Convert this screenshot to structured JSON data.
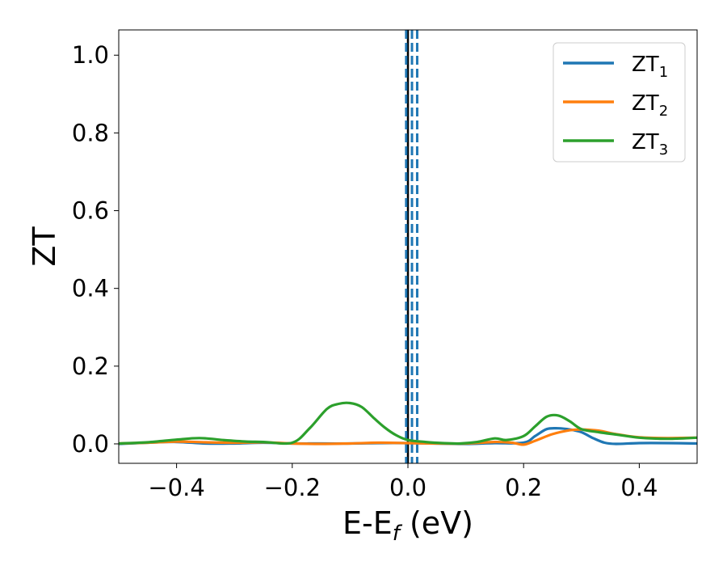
{
  "chart_data": {
    "type": "line",
    "xlabel_main": "E-E",
    "xlabel_sub": "f",
    "xlabel_unit": " (eV)",
    "ylabel": "ZT",
    "xlim": [
      -0.5,
      0.5
    ],
    "ylim": [
      -0.05,
      1.065
    ],
    "xticks": [
      -0.4,
      -0.2,
      0.0,
      0.2,
      0.4
    ],
    "xtick_labels": [
      "−0.4",
      "−0.2",
      "0.0",
      "0.2",
      "0.4"
    ],
    "yticks": [
      0.0,
      0.2,
      0.4,
      0.6,
      0.8,
      1.0
    ],
    "ytick_labels": [
      "0.0",
      "0.2",
      "0.4",
      "0.6",
      "0.8",
      "1.0"
    ],
    "grid": false,
    "legend_position": "top-right",
    "series": [
      {
        "name": "ZT",
        "sub": "1",
        "color": "#1f77b4",
        "x": [
          -0.5,
          -0.45,
          -0.4,
          -0.35,
          -0.3,
          -0.25,
          -0.2,
          -0.15,
          -0.1,
          -0.05,
          0.0,
          0.05,
          0.1,
          0.15,
          0.2,
          0.22,
          0.24,
          0.26,
          0.28,
          0.3,
          0.32,
          0.34,
          0.36,
          0.4,
          0.45,
          0.5
        ],
        "y": [
          0.0,
          0.003,
          0.005,
          0.001,
          0.001,
          0.003,
          0.001,
          0.001,
          0.001,
          0.002,
          0.002,
          0.001,
          0.0,
          0.002,
          0.003,
          0.02,
          0.038,
          0.04,
          0.037,
          0.03,
          0.015,
          0.003,
          0.0,
          0.002,
          0.002,
          0.001
        ]
      },
      {
        "name": "ZT",
        "sub": "2",
        "color": "#ff7f0e",
        "x": [
          -0.5,
          -0.45,
          -0.4,
          -0.35,
          -0.3,
          -0.25,
          -0.2,
          -0.15,
          -0.1,
          -0.05,
          0.0,
          0.05,
          0.1,
          0.15,
          0.18,
          0.2,
          0.22,
          0.25,
          0.28,
          0.3,
          0.33,
          0.36,
          0.4,
          0.45,
          0.5
        ],
        "y": [
          0.001,
          0.003,
          0.006,
          0.004,
          0.003,
          0.004,
          0.001,
          0.0,
          0.001,
          0.003,
          0.002,
          0.001,
          0.001,
          0.005,
          0.003,
          -0.002,
          0.008,
          0.025,
          0.035,
          0.037,
          0.034,
          0.025,
          0.017,
          0.015,
          0.016
        ]
      },
      {
        "name": "ZT",
        "sub": "3",
        "color": "#2ca02c",
        "x": [
          -0.5,
          -0.45,
          -0.4,
          -0.36,
          -0.32,
          -0.28,
          -0.25,
          -0.2,
          -0.17,
          -0.14,
          -0.12,
          -0.1,
          -0.08,
          -0.06,
          -0.04,
          -0.02,
          0.0,
          0.03,
          0.06,
          0.09,
          0.12,
          0.15,
          0.17,
          0.2,
          0.22,
          0.24,
          0.26,
          0.28,
          0.3,
          0.33,
          0.36,
          0.4,
          0.45,
          0.5
        ],
        "y": [
          0.001,
          0.004,
          0.011,
          0.015,
          0.01,
          0.006,
          0.005,
          0.003,
          0.04,
          0.09,
          0.103,
          0.105,
          0.095,
          0.068,
          0.042,
          0.022,
          0.01,
          0.005,
          0.002,
          0.001,
          0.005,
          0.014,
          0.01,
          0.02,
          0.045,
          0.07,
          0.073,
          0.058,
          0.038,
          0.03,
          0.024,
          0.016,
          0.013,
          0.016
        ]
      }
    ],
    "vlines": [
      {
        "x": 0.0,
        "color": "#000000",
        "style": "solid"
      },
      {
        "x": -0.003,
        "color": "#1f77b4",
        "style": "dashed"
      },
      {
        "x": 0.007,
        "color": "#1f77b4",
        "style": "dashed"
      },
      {
        "x": 0.016,
        "color": "#1f77b4",
        "style": "dashed"
      }
    ]
  }
}
